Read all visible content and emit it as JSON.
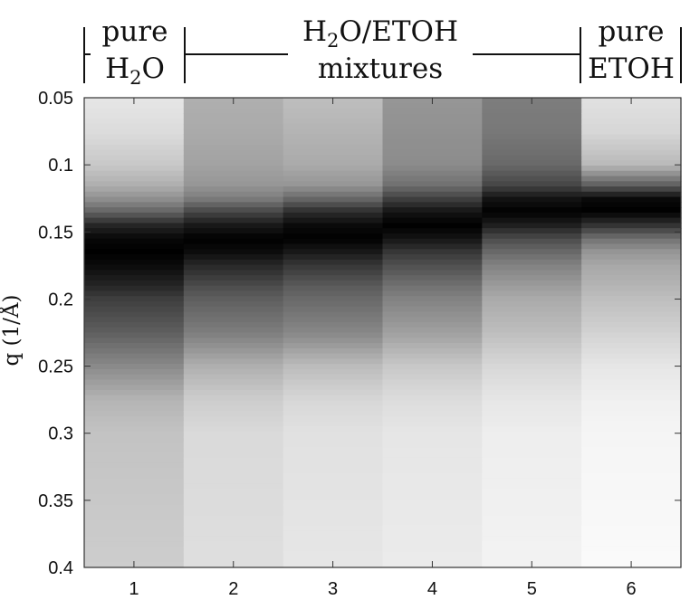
{
  "chart_data": {
    "type": "heatmap",
    "title": "",
    "xlabel": "",
    "ylabel": "q (1/Å)",
    "x": [
      1,
      2,
      3,
      4,
      5,
      6
    ],
    "x_tick_labels": [
      "1",
      "2",
      "3",
      "4",
      "5",
      "6"
    ],
    "ylim": [
      0.05,
      0.4
    ],
    "y_axis_inverted": true,
    "y_ticks": [
      0.05,
      0.1,
      0.15,
      0.2,
      0.25,
      0.3,
      0.35,
      0.4
    ],
    "y_tick_labels": [
      "0.05",
      "0.1",
      "0.15",
      "0.2",
      "0.25",
      "0.3",
      "0.35",
      "0.4"
    ],
    "colormap": "gray (black = highest intensity, white = lowest)",
    "q_grid": [
      0.05,
      0.075,
      0.1,
      0.115,
      0.125,
      0.135,
      0.145,
      0.155,
      0.165,
      0.175,
      0.19,
      0.2,
      0.225,
      0.25,
      0.275,
      0.3,
      0.35,
      0.4
    ],
    "columns": [
      {
        "x": 1,
        "peak_q": 0.165,
        "intensity": [
          0.08,
          0.12,
          0.2,
          0.3,
          0.42,
          0.6,
          0.85,
          0.97,
          1.0,
          0.96,
          0.85,
          0.75,
          0.62,
          0.45,
          0.28,
          0.22,
          0.2,
          0.18
        ]
      },
      {
        "x": 2,
        "peak_q": 0.155,
        "intensity": [
          0.3,
          0.32,
          0.35,
          0.4,
          0.5,
          0.72,
          0.9,
          1.0,
          0.95,
          0.84,
          0.7,
          0.62,
          0.5,
          0.3,
          0.18,
          0.13,
          0.12,
          0.11
        ]
      },
      {
        "x": 3,
        "peak_q": 0.148,
        "intensity": [
          0.24,
          0.28,
          0.32,
          0.4,
          0.58,
          0.82,
          0.96,
          1.0,
          0.9,
          0.78,
          0.64,
          0.58,
          0.46,
          0.25,
          0.14,
          0.1,
          0.09,
          0.08
        ]
      },
      {
        "x": 4,
        "peak_q": 0.138,
        "intensity": [
          0.4,
          0.42,
          0.44,
          0.55,
          0.74,
          0.92,
          1.0,
          0.92,
          0.78,
          0.68,
          0.55,
          0.48,
          0.36,
          0.2,
          0.12,
          0.08,
          0.07,
          0.06
        ]
      },
      {
        "x": 5,
        "peak_q": 0.128,
        "intensity": [
          0.5,
          0.52,
          0.58,
          0.72,
          0.92,
          1.0,
          0.88,
          0.7,
          0.58,
          0.48,
          0.38,
          0.32,
          0.24,
          0.14,
          0.08,
          0.05,
          0.04,
          0.03
        ]
      },
      {
        "x": 6,
        "peak_q": 0.12,
        "intensity": [
          0.1,
          0.14,
          0.26,
          0.62,
          0.96,
          1.0,
          0.8,
          0.55,
          0.4,
          0.33,
          0.28,
          0.24,
          0.16,
          0.08,
          0.04,
          0.02,
          0.01,
          0.0
        ]
      }
    ],
    "groups": [
      {
        "columns": [
          1
        ],
        "line1": "pure",
        "line2": "H",
        "line2_sub": "2",
        "line2_after": "O"
      },
      {
        "columns": [
          2,
          3,
          4,
          5
        ],
        "line1": "H",
        "line1_sub": "2",
        "line1_after": "O/ETOH",
        "line2": "mixtures"
      },
      {
        "columns": [
          6
        ],
        "line1": "pure",
        "line2": "ETOH"
      }
    ],
    "grid": false,
    "legend": "none"
  }
}
